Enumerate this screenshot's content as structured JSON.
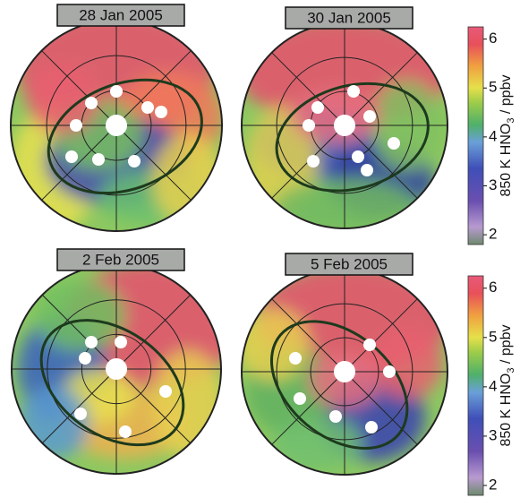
{
  "panels": [
    {
      "title": "28 Jan 2005"
    },
    {
      "title": "30 Jan 2005"
    },
    {
      "title": "2 Feb 2005"
    },
    {
      "title": "5 Feb 2005"
    }
  ],
  "colorbars": [
    {
      "label": {
        "prefix": "850 K HNO",
        "subscript": "3",
        "suffix": " / ppbv"
      },
      "lim": [
        1.8,
        6.25
      ],
      "ticks": [
        2,
        3,
        4,
        5,
        6
      ]
    },
    {
      "label": {
        "prefix": "850 K HNO",
        "subscript": "3",
        "suffix": " / ppbv"
      },
      "lim": [
        1.8,
        6.25
      ],
      "ticks": [
        2,
        3,
        4,
        5,
        6
      ]
    }
  ]
}
